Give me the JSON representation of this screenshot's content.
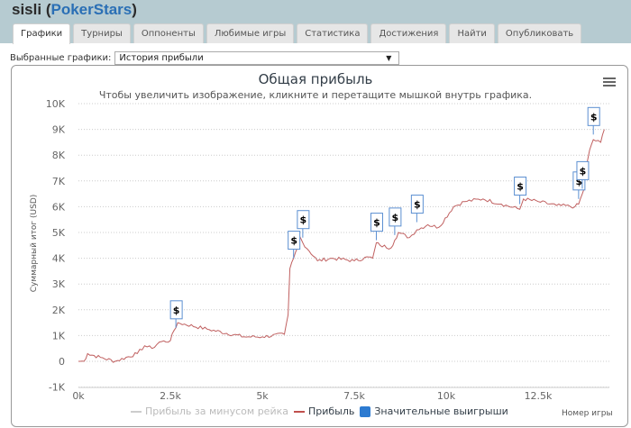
{
  "header": {
    "player": "sisli",
    "site": "PokerStars"
  },
  "tabs": [
    {
      "label": "Графики",
      "active": true
    },
    {
      "label": "Турниры"
    },
    {
      "label": "Оппоненты"
    },
    {
      "label": "Любимые игры"
    },
    {
      "label": "Статистика"
    },
    {
      "label": "Достижения"
    },
    {
      "label": "Найти"
    },
    {
      "label": "Опубликовать"
    }
  ],
  "selector": {
    "label": "Выбранные графики:",
    "value": "История прибыли"
  },
  "chart": {
    "title": "Общая прибыль",
    "subtitle": "Чтобы увеличить изображение, кликните и перетащите мышкой внутрь графика.",
    "ylabel": "Суммарный итог (USD)",
    "xlabel": "Номер игры",
    "legend": [
      {
        "label": "Прибыль за минусом рейка",
        "color": "#cccccc"
      },
      {
        "label": "Прибыль",
        "color": "#c0504d"
      },
      {
        "label": "Значительные выигрыши",
        "color": "#2d7bd1"
      }
    ],
    "colors": {
      "line": "#c06060",
      "marker_border": "#5b8fd1"
    }
  },
  "chart_data": {
    "type": "line",
    "title": "Общая прибыль",
    "subtitle": "Чтобы увеличить изображение, кликните и перетащите мышкой внутрь графика.",
    "xlabel": "Номер игры",
    "ylabel": "Суммарный итог (USD)",
    "xticks": [
      "0k",
      "2.5k",
      "5k",
      "7.5k",
      "10k",
      "12.5k"
    ],
    "yticks": [
      "-1K",
      "0",
      "1K",
      "2K",
      "3K",
      "4K",
      "5K",
      "6K",
      "7K",
      "8K",
      "9K",
      "10K"
    ],
    "ylim": [
      -1000,
      10000
    ],
    "xlim": [
      0,
      14300
    ],
    "grid": true,
    "legend_position": "bottom",
    "series": [
      {
        "name": "Прибыль",
        "x": [
          0,
          150,
          250,
          600,
          1000,
          1600,
          1800,
          2000,
          2200,
          2500,
          2600,
          2650,
          2700,
          3500,
          4500,
          5000,
          5600,
          5700,
          5750,
          5850,
          5950,
          6000,
          6100,
          6500,
          6900,
          7500,
          7900,
          8000,
          8100,
          8200,
          8500,
          8600,
          8700,
          9000,
          9200,
          9500,
          9800,
          10200,
          10500,
          11000,
          11500,
          12000,
          12100,
          12500,
          13000,
          13500,
          13600,
          13700,
          13750,
          13800,
          13900,
          14000,
          14200,
          14300
        ],
        "values": [
          0,
          0,
          300,
          150,
          0,
          300,
          600,
          500,
          750,
          800,
          1200,
          1300,
          1500,
          1250,
          950,
          950,
          1050,
          1800,
          3600,
          4000,
          4400,
          4900,
          4600,
          3900,
          4000,
          3900,
          4050,
          4000,
          4600,
          4500,
          4400,
          4700,
          5000,
          4800,
          5100,
          5300,
          5200,
          6000,
          6200,
          6300,
          6100,
          5900,
          6300,
          6200,
          6050,
          6000,
          6100,
          6500,
          6700,
          7500,
          8200,
          8600,
          8500,
          9000
        ]
      },
      {
        "name": "Прибыль за минусом рейка",
        "values": []
      },
      {
        "name": "Значительные выигрыши",
        "x": [
          2650,
          5850,
          6100,
          8100,
          8600,
          9200,
          12000,
          13600,
          13700,
          14000
        ],
        "values": [
          1300,
          4000,
          4800,
          4700,
          4900,
          5400,
          6100,
          6300,
          6700,
          8800
        ]
      }
    ]
  }
}
